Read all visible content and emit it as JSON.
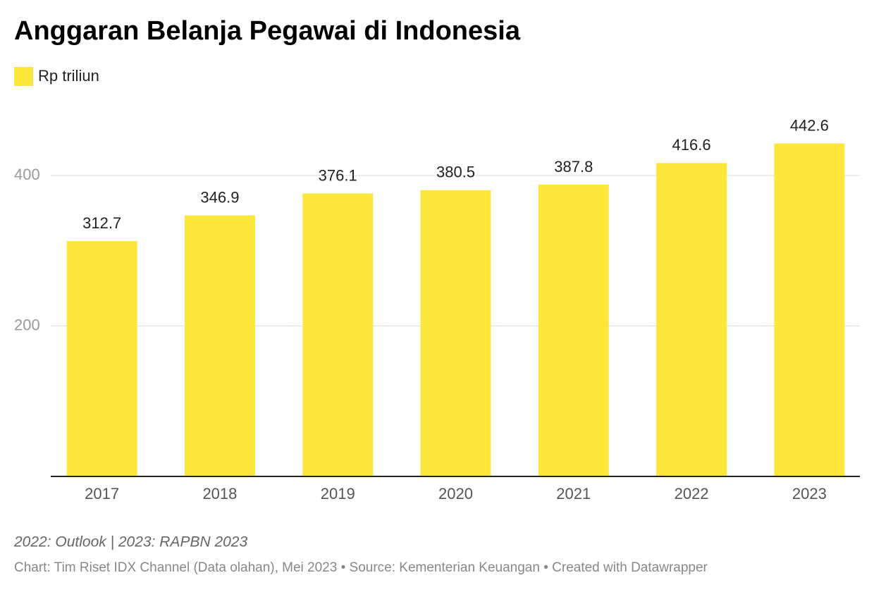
{
  "chart_data": {
    "type": "bar",
    "title": "Anggaran Belanja Pegawai di Indonesia",
    "categories": [
      "2017",
      "2018",
      "2019",
      "2020",
      "2021",
      "2022",
      "2023"
    ],
    "series": [
      {
        "name": "Rp triliun",
        "color": "#fde73a",
        "values": [
          312.7,
          346.9,
          376.1,
          380.5,
          387.8,
          416.6,
          442.6
        ]
      }
    ],
    "ylim": [
      0,
      450
    ],
    "yticks": [
      200,
      400
    ],
    "grid": true,
    "note": "2022: Outlook | 2023: RAPBN 2023",
    "source": "Chart: Tim Riset IDX Channel (Data olahan), Mei 2023 • Source: Kementerian Keuangan • Created with Datawrapper"
  }
}
